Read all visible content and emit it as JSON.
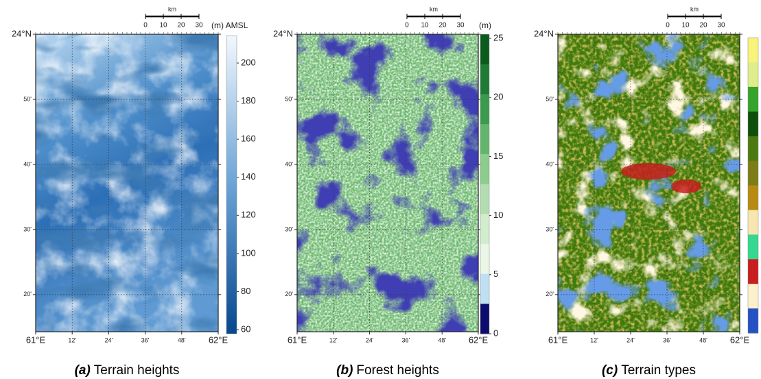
{
  "panels": [
    {
      "caption_label": "(a)",
      "caption": "Terrain heights",
      "scale_unit": "km",
      "scale_ticks": [
        "0",
        "10",
        "20",
        "30"
      ],
      "lat_labels": [
        "24°N",
        "50'",
        "40'",
        "30'",
        "20'"
      ],
      "lon_labels": [
        "61°E",
        "12'",
        "24'",
        "36'",
        "48'",
        "62°E"
      ],
      "colorbar_title": "(m) AMSL",
      "colorbar_ticks": [
        "200",
        "180",
        "160",
        "140",
        "120",
        "100",
        "80",
        "60"
      ]
    },
    {
      "caption_label": "(b)",
      "caption": "Forest heights",
      "scale_unit": "km",
      "scale_ticks": [
        "0",
        "10",
        "20",
        "30"
      ],
      "lat_labels": [
        "24°N",
        "50'",
        "40'",
        "30'",
        "20'"
      ],
      "lon_labels": [
        "61°E",
        "12'",
        "24'",
        "36'",
        "48'",
        "62°E"
      ],
      "colorbar_title": "(m)",
      "colorbar_ticks": [
        "25",
        "20",
        "15",
        "10",
        "5",
        "0"
      ]
    },
    {
      "caption_label": "(c)",
      "caption": "Terrain types",
      "scale_unit": "km",
      "scale_ticks": [
        "0",
        "10",
        "20",
        "30"
      ],
      "lat_labels": [
        "24°N",
        "50'",
        "40'",
        "30'",
        "20'"
      ],
      "lon_labels": [
        "61°E",
        "12'",
        "24'",
        "36'",
        "48'",
        "62°E"
      ]
    }
  ]
}
